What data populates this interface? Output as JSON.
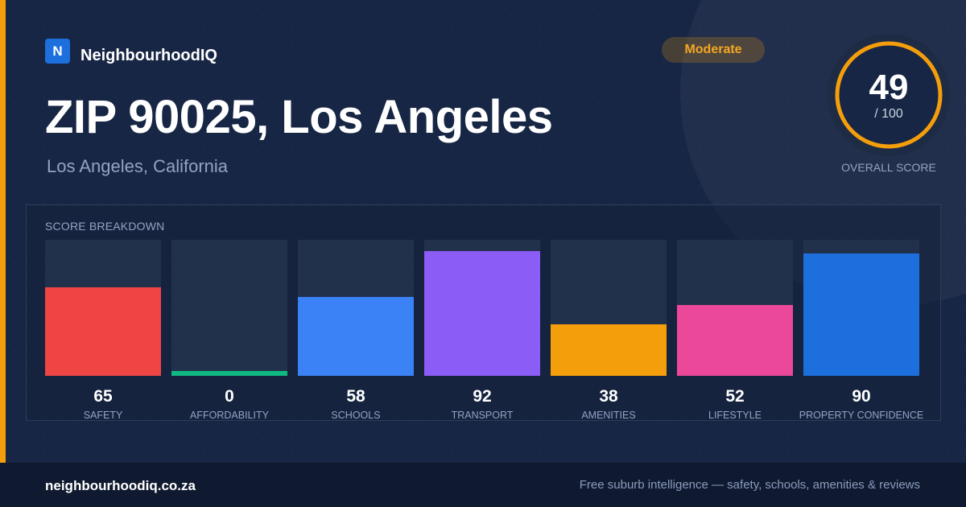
{
  "brand": {
    "logo_letter": "N",
    "name": "NeighbourhoodIQ"
  },
  "badge": {
    "label": "Moderate",
    "color": "#f5a623"
  },
  "header": {
    "title": "ZIP 90025, Los Angeles",
    "subtitle": "Los Angeles, California"
  },
  "overall": {
    "score": "49",
    "max": "/ 100",
    "label": "OVERALL SCORE",
    "fraction": 0.49,
    "color": "#f59e0b"
  },
  "breakdown": {
    "title": "SCORE BREAKDOWN",
    "items": [
      {
        "value": "65",
        "label": "SAFETY",
        "score": 65,
        "color": "#ef4444"
      },
      {
        "value": "0",
        "label": "AFFORDABILITY",
        "score": 0,
        "color": "#10b981"
      },
      {
        "value": "58",
        "label": "SCHOOLS",
        "score": 58,
        "color": "#3b82f6"
      },
      {
        "value": "92",
        "label": "TRANSPORT",
        "score": 92,
        "color": "#8b5cf6"
      },
      {
        "value": "38",
        "label": "AMENITIES",
        "score": 38,
        "color": "#f59e0b"
      },
      {
        "value": "52",
        "label": "LIFESTYLE",
        "score": 52,
        "color": "#ec4899"
      },
      {
        "value": "90",
        "label": "PROPERTY CONFIDENCE",
        "score": 90,
        "color": "#1d6fde"
      }
    ]
  },
  "footer": {
    "domain": "neighbourhoodiq.co.za",
    "tagline": "Free suburb intelligence — safety, schools, amenities & reviews"
  }
}
